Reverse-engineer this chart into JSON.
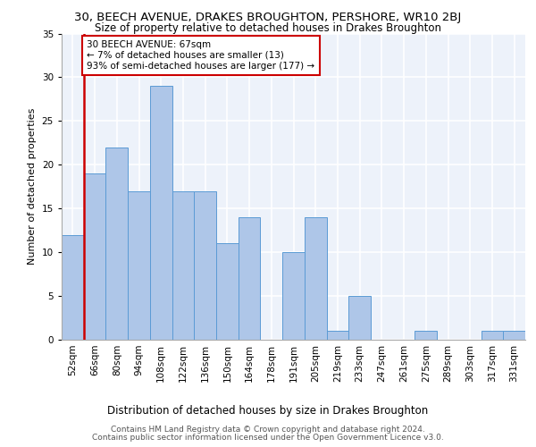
{
  "title1": "30, BEECH AVENUE, DRAKES BROUGHTON, PERSHORE, WR10 2BJ",
  "title2": "Size of property relative to detached houses in Drakes Broughton",
  "xlabel": "Distribution of detached houses by size in Drakes Broughton",
  "ylabel": "Number of detached properties",
  "footer1": "Contains HM Land Registry data © Crown copyright and database right 2024.",
  "footer2": "Contains public sector information licensed under the Open Government Licence v3.0.",
  "annotation_line1": "30 BEECH AVENUE: 67sqm",
  "annotation_line2": "← 7% of detached houses are smaller (13)",
  "annotation_line3": "93% of semi-detached houses are larger (177) →",
  "bar_labels": [
    "52sqm",
    "66sqm",
    "80sqm",
    "94sqm",
    "108sqm",
    "122sqm",
    "136sqm",
    "150sqm",
    "164sqm",
    "178sqm",
    "191sqm",
    "205sqm",
    "219sqm",
    "233sqm",
    "247sqm",
    "261sqm",
    "275sqm",
    "289sqm",
    "303sqm",
    "317sqm",
    "331sqm"
  ],
  "bar_values": [
    12,
    19,
    22,
    17,
    29,
    17,
    17,
    11,
    14,
    0,
    10,
    14,
    1,
    5,
    0,
    0,
    1,
    0,
    0,
    1,
    1
  ],
  "bar_color": "#aec6e8",
  "bar_edge_color": "#5b9bd5",
  "highlight_color": "#cc0000",
  "vline_x_index": 1,
  "annotation_box_color": "#cc0000",
  "ylim": [
    0,
    35
  ],
  "yticks": [
    0,
    5,
    10,
    15,
    20,
    25,
    30,
    35
  ],
  "background_color": "#edf2fa",
  "grid_color": "#ffffff",
  "title1_fontsize": 9.5,
  "title2_fontsize": 8.5,
  "xlabel_fontsize": 8.5,
  "ylabel_fontsize": 8,
  "tick_fontsize": 7.5,
  "annotation_fontsize": 7.5,
  "footer_fontsize": 6.5
}
